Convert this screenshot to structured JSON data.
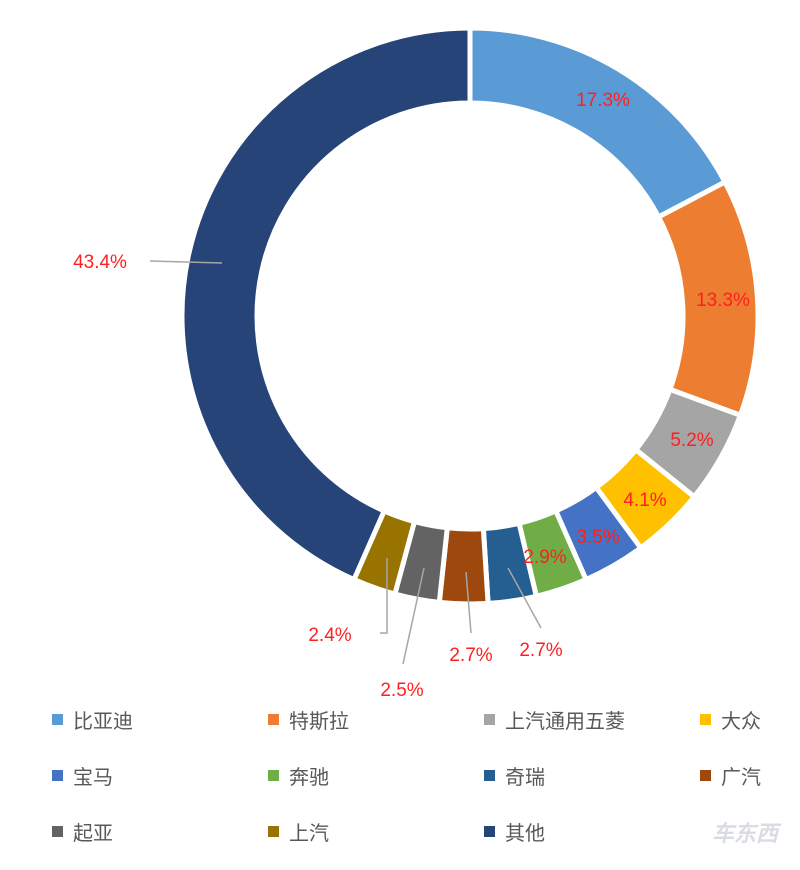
{
  "chart_data": {
    "type": "pie",
    "donut": true,
    "start": "12 o'clock, clockwise",
    "slices": [
      {
        "name": "比亚迪",
        "value": 17.3,
        "label": "17.3%",
        "color": "#5B9BD5"
      },
      {
        "name": "特斯拉",
        "value": 13.3,
        "label": "13.3%",
        "color": "#ED7D31"
      },
      {
        "name": "上汽通用五菱",
        "value": 5.2,
        "label": "5.2%",
        "color": "#A5A5A5"
      },
      {
        "name": "大众",
        "value": 4.1,
        "label": "4.1%",
        "color": "#FFC000"
      },
      {
        "name": "宝马",
        "value": 3.5,
        "label": "3.5%",
        "color": "#4472C4"
      },
      {
        "name": "奔驰",
        "value": 2.9,
        "label": "2.9%",
        "color": "#70AD47"
      },
      {
        "name": "奇瑞",
        "value": 2.7,
        "label": "2.7%",
        "color": "#255E91"
      },
      {
        "name": "广汽",
        "value": 2.7,
        "label": "2.7%",
        "color": "#9E480E"
      },
      {
        "name": "起亚",
        "value": 2.5,
        "label": "2.5%",
        "color": "#636363"
      },
      {
        "name": "上汽",
        "value": 2.4,
        "label": "2.4%",
        "color": "#997300"
      },
      {
        "name": "其他",
        "value": 43.4,
        "label": "43.4%",
        "color": "#264478"
      }
    ],
    "label_color": "#FF1F1F",
    "legend_position": "bottom"
  },
  "watermark": "车东西"
}
